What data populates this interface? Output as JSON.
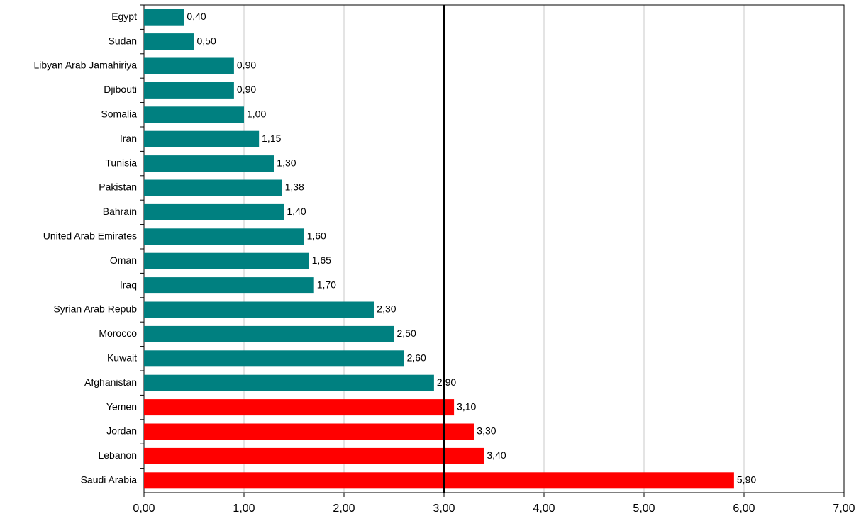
{
  "chart_data": {
    "type": "barh",
    "categories": [
      "Egypt",
      "Sudan",
      "Libyan Arab Jamahiriya",
      "Djibouti",
      "Somalia",
      "Iran",
      "Tunisia",
      "Pakistan",
      "Bahrain",
      "United Arab Emirates",
      "Oman",
      "Iraq",
      "Syrian Arab Repub",
      "Morocco",
      "Kuwait",
      "Afghanistan",
      "Yemen",
      "Jordan",
      "Lebanon",
      "Saudi Arabia"
    ],
    "values": [
      0.4,
      0.5,
      0.9,
      0.9,
      1.0,
      1.15,
      1.3,
      1.38,
      1.4,
      1.6,
      1.65,
      1.7,
      2.3,
      2.5,
      2.6,
      2.9,
      3.1,
      3.3,
      3.4,
      5.9
    ],
    "value_labels": [
      "0,40",
      "0,50",
      "0,90",
      "0,90",
      "1,00",
      "1,15",
      "1,30",
      "1,38",
      "1,40",
      "1,60",
      "1,65",
      "1,70",
      "2,30",
      "2,50",
      "2,60",
      "2,90",
      "3,10",
      "3,30",
      "3,40",
      "5,90"
    ],
    "colors": [
      "#008080",
      "#008080",
      "#008080",
      "#008080",
      "#008080",
      "#008080",
      "#008080",
      "#008080",
      "#008080",
      "#008080",
      "#008080",
      "#008080",
      "#008080",
      "#008080",
      "#008080",
      "#008080",
      "#ff0000",
      "#ff0000",
      "#ff0000",
      "#ff0000"
    ],
    "xlim": [
      0,
      7
    ],
    "xticks": [
      {
        "value": 0,
        "label": "0,00"
      },
      {
        "value": 1,
        "label": "1,00"
      },
      {
        "value": 2,
        "label": "2,00"
      },
      {
        "value": 3,
        "label": "3,00"
      },
      {
        "value": 4,
        "label": "4,00"
      },
      {
        "value": 5,
        "label": "5,00"
      },
      {
        "value": 6,
        "label": "6,00"
      },
      {
        "value": 7,
        "label": "7,00"
      }
    ],
    "grid": true,
    "reference_line": 3
  }
}
